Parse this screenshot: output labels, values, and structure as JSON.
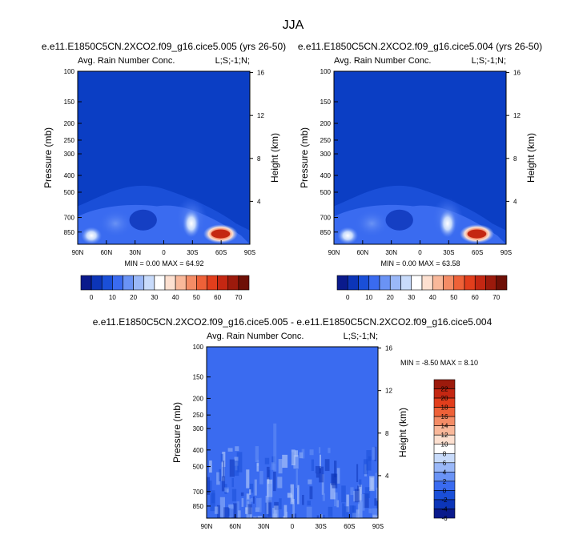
{
  "page_title": "JJA",
  "colors": {
    "field_base": "#0b3ec4",
    "diff_base": "#3a6bf0",
    "frame": "#000000"
  },
  "chart_data": [
    {
      "type": "heatmap",
      "title": "e.e11.E1850C5CN.2XCO2.f09_g16.cice5.005 (yrs 26-50)",
      "left_label": "Avg. Rain Number Conc.",
      "right_label": "L;S;-1;N;",
      "xlabel": "",
      "ylabel": "Pressure (mb)",
      "ylabel_right": "Height (km)",
      "x_ticks": [
        "90N",
        "60N",
        "30N",
        "0",
        "30S",
        "60S",
        "90S"
      ],
      "y_ticks": [
        "100",
        "150",
        "200",
        "250",
        "300",
        "400",
        "500",
        "700",
        "850"
      ],
      "y_right_ticks": [
        "16",
        "12",
        "8",
        "4"
      ],
      "y_scale": "log",
      "xlim": [
        90,
        -90
      ],
      "ylim": [
        1000,
        100
      ],
      "min_label": "MIN =   0.00",
      "max_label": "MAX =  64.92",
      "min": 0.0,
      "max": 64.92,
      "colorbar": {
        "labels": [
          "0",
          "10",
          "20",
          "30",
          "40",
          "50",
          "60",
          "70"
        ],
        "colors": [
          "#0a1a8c",
          "#0c35b8",
          "#1a4fd8",
          "#3a6bf0",
          "#6a93f5",
          "#9ab8f8",
          "#c8dbfb",
          "#ffffff",
          "#fde0d0",
          "#f9b89a",
          "#f48c66",
          "#ee6138",
          "#e23e1c",
          "#c42712",
          "#9c1a0c",
          "#6e0f06"
        ]
      }
    },
    {
      "type": "heatmap",
      "title": "e.e11.E1850C5CN.2XCO2.f09_g16.cice5.004 (yrs 26-50)",
      "left_label": "Avg. Rain Number Conc.",
      "right_label": "L;S;-1;N;",
      "xlabel": "",
      "ylabel": "Pressure (mb)",
      "ylabel_right": "Height (km)",
      "x_ticks": [
        "90N",
        "60N",
        "30N",
        "0",
        "30S",
        "60S",
        "90S"
      ],
      "y_ticks": [
        "100",
        "150",
        "200",
        "250",
        "300",
        "400",
        "500",
        "700",
        "850"
      ],
      "y_right_ticks": [
        "16",
        "12",
        "8",
        "4"
      ],
      "y_scale": "log",
      "xlim": [
        90,
        -90
      ],
      "ylim": [
        1000,
        100
      ],
      "min_label": "MIN =   0.00",
      "max_label": "MAX =  63.58",
      "min": 0.0,
      "max": 63.58,
      "colorbar": {
        "labels": [
          "0",
          "10",
          "20",
          "30",
          "40",
          "50",
          "60",
          "70"
        ],
        "colors": [
          "#0a1a8c",
          "#0c35b8",
          "#1a4fd8",
          "#3a6bf0",
          "#6a93f5",
          "#9ab8f8",
          "#c8dbfb",
          "#ffffff",
          "#fde0d0",
          "#f9b89a",
          "#f48c66",
          "#ee6138",
          "#e23e1c",
          "#c42712",
          "#9c1a0c",
          "#6e0f06"
        ]
      }
    },
    {
      "type": "heatmap",
      "title": "e.e11.E1850C5CN.2XCO2.f09_g16.cice5.005 - e.e11.E1850C5CN.2XCO2.f09_g16.cice5.004",
      "left_label": "Avg. Rain Number Conc.",
      "right_label": "L;S;-1;N;",
      "xlabel": "",
      "ylabel": "Pressure (mb)",
      "ylabel_right": "Height (km)",
      "x_ticks": [
        "90N",
        "60N",
        "30N",
        "0",
        "30S",
        "60S",
        "90S"
      ],
      "y_ticks": [
        "100",
        "150",
        "200",
        "250",
        "300",
        "400",
        "500",
        "700",
        "850"
      ],
      "y_right_ticks": [
        "16",
        "12",
        "8",
        "4"
      ],
      "y_scale": "log",
      "xlim": [
        90,
        -90
      ],
      "ylim": [
        1000,
        100
      ],
      "min_label": "MIN =  -8.50",
      "max_label": "MAX =   8.10",
      "min": -8.5,
      "max": 8.1,
      "colorbar": {
        "labels": [
          "22",
          "20",
          "18",
          "16",
          "14",
          "12",
          "10",
          "8",
          "6",
          "4",
          "2",
          "0",
          "-2",
          "-4",
          "-6"
        ],
        "colors": [
          "#9c1a0c",
          "#c42712",
          "#e23e1c",
          "#ee6138",
          "#f48c66",
          "#f9b89a",
          "#fde0d0",
          "#ffffff",
          "#c8dbfb",
          "#9ab8f8",
          "#6a93f5",
          "#3a6bf0",
          "#1a4fd8",
          "#0c35b8",
          "#0a1a8c"
        ]
      }
    }
  ]
}
